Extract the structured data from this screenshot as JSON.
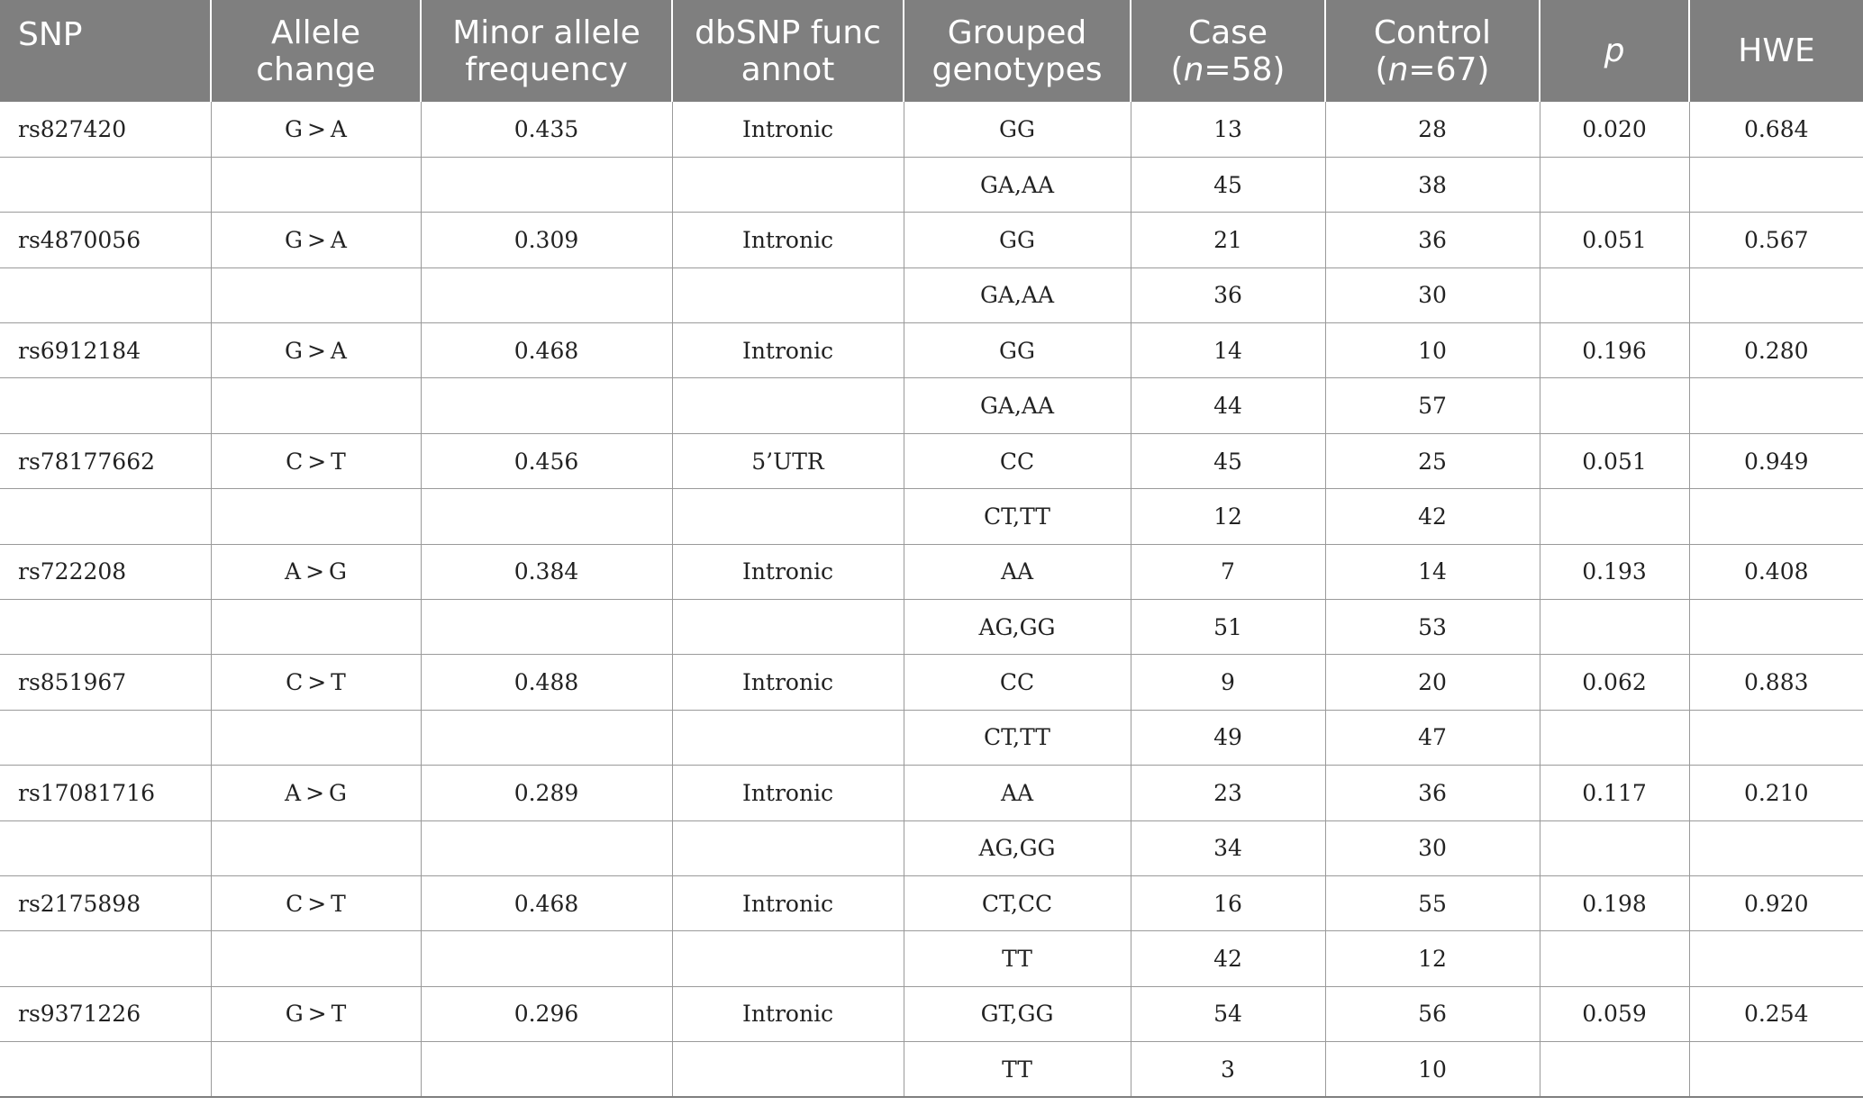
{
  "columns": {
    "snp": "SNP",
    "allele_change": [
      "Allele",
      "change"
    ],
    "maf": [
      "Minor allele",
      "frequency"
    ],
    "dbsnp": [
      "dbSNP func",
      "annot"
    ],
    "genotypes": [
      "Grouped",
      "genotypes"
    ],
    "case": [
      "Case",
      "(",
      "n",
      "=58)"
    ],
    "control": [
      "Control",
      "(",
      "n",
      "=67)"
    ],
    "p": "p",
    "hwe": "HWE"
  },
  "rows": [
    {
      "snp": "rs827420",
      "allele": "G > A",
      "maf": "0.435",
      "annot": "Intronic",
      "geno": "GG",
      "case": "13",
      "control": "28",
      "p": "0.020",
      "hwe": "0.684"
    },
    {
      "snp": "",
      "allele": "",
      "maf": "",
      "annot": "",
      "geno": "GA,AA",
      "case": "45",
      "control": "38",
      "p": "",
      "hwe": ""
    },
    {
      "snp": "rs4870056",
      "allele": "G > A",
      "maf": "0.309",
      "annot": "Intronic",
      "geno": "GG",
      "case": "21",
      "control": "36",
      "p": "0.051",
      "hwe": "0.567"
    },
    {
      "snp": "",
      "allele": "",
      "maf": "",
      "annot": "",
      "geno": "GA,AA",
      "case": "36",
      "control": "30",
      "p": "",
      "hwe": ""
    },
    {
      "snp": "rs6912184",
      "allele": "G > A",
      "maf": "0.468",
      "annot": "Intronic",
      "geno": "GG",
      "case": "14",
      "control": "10",
      "p": "0.196",
      "hwe": "0.280"
    },
    {
      "snp": "",
      "allele": "",
      "maf": "",
      "annot": "",
      "geno": "GA,AA",
      "case": "44",
      "control": "57",
      "p": "",
      "hwe": ""
    },
    {
      "snp": "rs78177662",
      "allele": "C > T",
      "maf": "0.456",
      "annot": "5’UTR",
      "geno": "CC",
      "case": "45",
      "control": "25",
      "p": "0.051",
      "hwe": "0.949"
    },
    {
      "snp": "",
      "allele": "",
      "maf": "",
      "annot": "",
      "geno": "CT,TT",
      "case": "12",
      "control": "42",
      "p": "",
      "hwe": ""
    },
    {
      "snp": "rs722208",
      "allele": "A > G",
      "maf": "0.384",
      "annot": "Intronic",
      "geno": "AA",
      "case": "7",
      "control": "14",
      "p": "0.193",
      "hwe": "0.408"
    },
    {
      "snp": "",
      "allele": "",
      "maf": "",
      "annot": "",
      "geno": "AG,GG",
      "case": "51",
      "control": "53",
      "p": "",
      "hwe": ""
    },
    {
      "snp": "rs851967",
      "allele": "C > T",
      "maf": "0.488",
      "annot": "Intronic",
      "geno": "CC",
      "case": "9",
      "control": "20",
      "p": "0.062",
      "hwe": "0.883"
    },
    {
      "snp": "",
      "allele": "",
      "maf": "",
      "annot": "",
      "geno": "CT,TT",
      "case": "49",
      "control": "47",
      "p": "",
      "hwe": ""
    },
    {
      "snp": "rs17081716",
      "allele": "A > G",
      "maf": "0.289",
      "annot": "Intronic",
      "geno": "AA",
      "case": "23",
      "control": "36",
      "p": "0.117",
      "hwe": "0.210"
    },
    {
      "snp": "",
      "allele": "",
      "maf": "",
      "annot": "",
      "geno": "AG,GG",
      "case": "34",
      "control": "30",
      "p": "",
      "hwe": ""
    },
    {
      "snp": "rs2175898",
      "allele": "C > T",
      "maf": "0.468",
      "annot": "Intronic",
      "geno": "CT,CC",
      "case": "16",
      "control": "55",
      "p": "0.198",
      "hwe": "0.920"
    },
    {
      "snp": "",
      "allele": "",
      "maf": "",
      "annot": "",
      "geno": "TT",
      "case": "42",
      "control": "12",
      "p": "",
      "hwe": ""
    },
    {
      "snp": "rs9371226",
      "allele": "G > T",
      "maf": "0.296",
      "annot": "Intronic",
      "geno": "GT,GG",
      "case": "54",
      "control": "56",
      "p": "0.059",
      "hwe": "0.254"
    },
    {
      "snp": "",
      "allele": "",
      "maf": "",
      "annot": "",
      "geno": "TT",
      "case": "3",
      "control": "10",
      "p": "",
      "hwe": ""
    }
  ]
}
